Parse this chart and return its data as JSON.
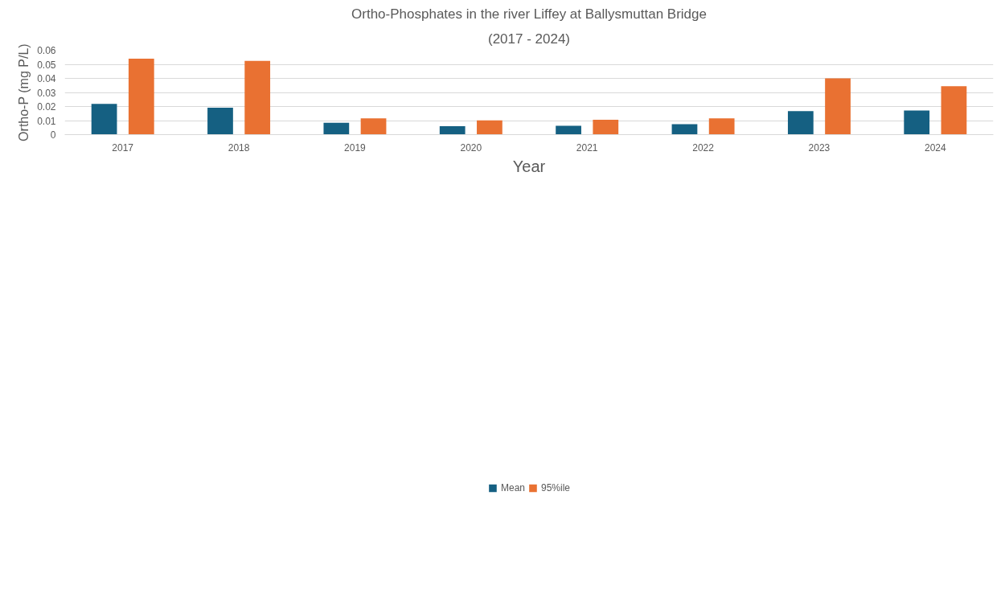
{
  "chart_data": {
    "type": "bar",
    "title": "Ortho-Phosphates in the river Liffey at Ballysmuttan Bridge",
    "subtitle": "(2017 - 2024)",
    "xlabel": "Year",
    "ylabel": "Ortho-P (mg P/L)",
    "categories": [
      "2017",
      "2018",
      "2019",
      "2020",
      "2021",
      "2022",
      "2023",
      "2024"
    ],
    "series": [
      {
        "name": "Mean",
        "color": "#156082",
        "values": [
          0.0219,
          0.0191,
          0.0084,
          0.006,
          0.0063,
          0.0074,
          0.0167,
          0.0172
        ]
      },
      {
        "name": "95%ile",
        "color": "#e97132",
        "values": [
          0.054,
          0.0524,
          0.0116,
          0.0101,
          0.0106,
          0.0116,
          0.04,
          0.0344
        ]
      }
    ],
    "ylim": [
      0,
      0.06
    ],
    "yticks": [
      0,
      0.01,
      0.02,
      0.03,
      0.04,
      0.05,
      0.06
    ],
    "grid": "y",
    "legend": "bottom"
  }
}
